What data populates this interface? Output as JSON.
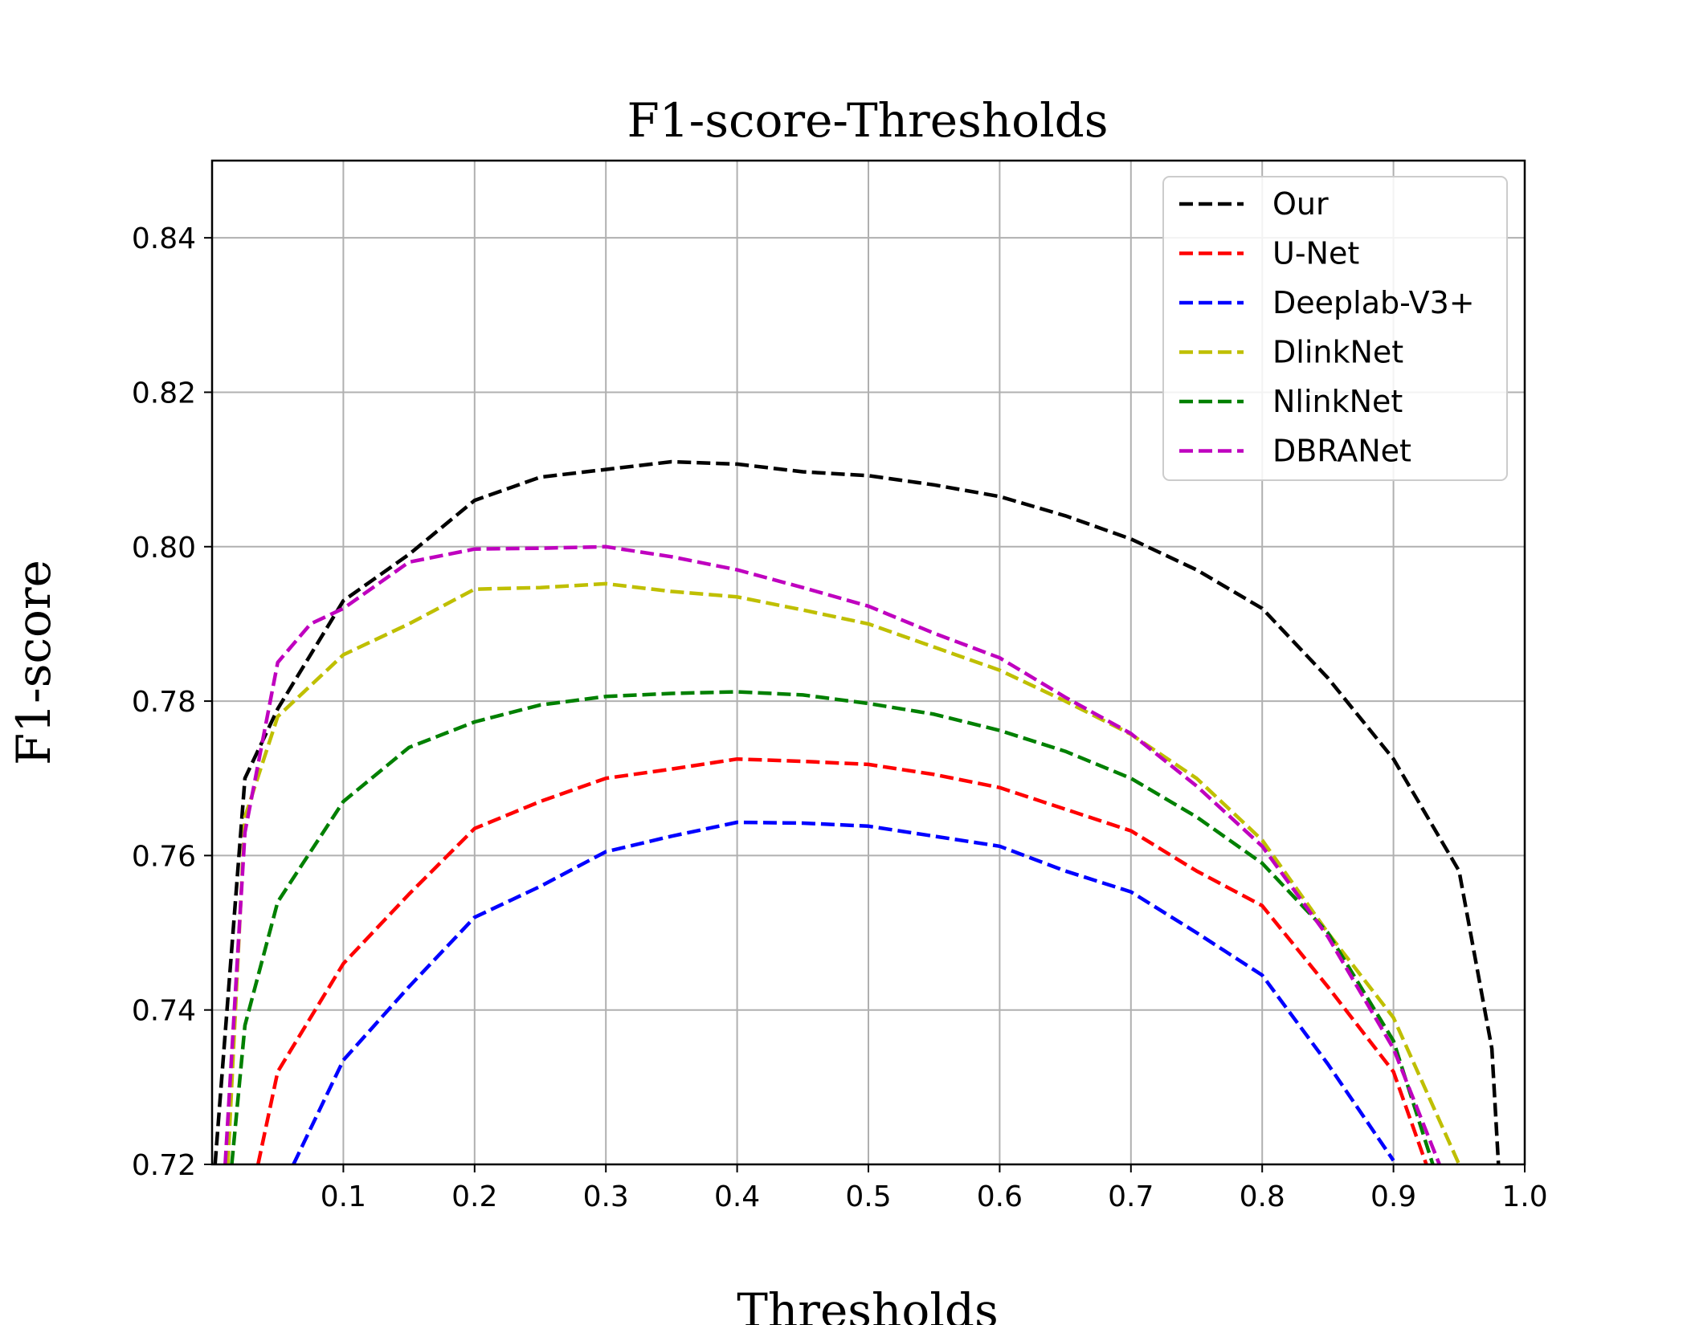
{
  "chart_data": {
    "type": "line",
    "title": "F1-score-Thresholds",
    "xlabel": "Thresholds",
    "ylabel": "F1-score",
    "xlim": [
      0.0,
      1.0
    ],
    "ylim": [
      0.72,
      0.85
    ],
    "xticks": [
      "0.1",
      "0.2",
      "0.3",
      "0.4",
      "0.5",
      "0.6",
      "0.7",
      "0.8",
      "0.9",
      "1.0"
    ],
    "yticks": [
      "0.72",
      "0.74",
      "0.76",
      "0.78",
      "0.80",
      "0.82",
      "0.84"
    ],
    "grid": true,
    "legend_position": "top-right",
    "line_style": "dashed",
    "series": [
      {
        "name": "Our",
        "color": "#000000",
        "x": [
          0.0,
          0.025,
          0.05,
          0.1,
          0.15,
          0.2,
          0.25,
          0.3,
          0.35,
          0.4,
          0.45,
          0.5,
          0.55,
          0.6,
          0.65,
          0.7,
          0.75,
          0.8,
          0.85,
          0.9,
          0.95,
          0.975,
          0.98
        ],
        "y": [
          0.715,
          0.77,
          0.779,
          0.793,
          0.799,
          0.806,
          0.809,
          0.81,
          0.811,
          0.8107,
          0.8097,
          0.8092,
          0.808,
          0.8065,
          0.804,
          0.801,
          0.797,
          0.792,
          0.783,
          0.7725,
          0.758,
          0.735,
          0.72
        ]
      },
      {
        "name": "U-Net",
        "color": "#ff0000",
        "x": [
          0.035,
          0.05,
          0.1,
          0.15,
          0.2,
          0.25,
          0.3,
          0.35,
          0.4,
          0.45,
          0.5,
          0.55,
          0.6,
          0.65,
          0.7,
          0.75,
          0.8,
          0.85,
          0.9,
          0.925
        ],
        "y": [
          0.72,
          0.732,
          0.746,
          0.755,
          0.7635,
          0.767,
          0.77,
          0.7712,
          0.7725,
          0.7722,
          0.7718,
          0.7705,
          0.7688,
          0.766,
          0.7632,
          0.758,
          0.7535,
          0.743,
          0.732,
          0.72
        ]
      },
      {
        "name": "Deeplab-V3+",
        "color": "#0000ff",
        "x": [
          0.062,
          0.1,
          0.15,
          0.2,
          0.25,
          0.3,
          0.35,
          0.4,
          0.45,
          0.5,
          0.55,
          0.6,
          0.65,
          0.7,
          0.75,
          0.8,
          0.85,
          0.9
        ],
        "y": [
          0.72,
          0.7335,
          0.743,
          0.752,
          0.756,
          0.7605,
          0.7625,
          0.7643,
          0.7642,
          0.7638,
          0.7625,
          0.7612,
          0.758,
          0.7553,
          0.75,
          0.7445,
          0.733,
          0.7205
        ]
      },
      {
        "name": "DlinkNet",
        "color": "#bfbf00",
        "x": [
          0.012,
          0.025,
          0.05,
          0.1,
          0.15,
          0.2,
          0.25,
          0.3,
          0.35,
          0.4,
          0.45,
          0.5,
          0.55,
          0.6,
          0.65,
          0.7,
          0.75,
          0.8,
          0.85,
          0.9,
          0.95
        ],
        "y": [
          0.72,
          0.765,
          0.778,
          0.786,
          0.79,
          0.7945,
          0.7947,
          0.7952,
          0.7942,
          0.7935,
          0.7918,
          0.79,
          0.787,
          0.784,
          0.78,
          0.7757,
          0.77,
          0.762,
          0.75,
          0.739,
          0.72
        ]
      },
      {
        "name": "NlinkNet",
        "color": "#008000",
        "x": [
          0.015,
          0.025,
          0.05,
          0.1,
          0.15,
          0.2,
          0.25,
          0.3,
          0.35,
          0.4,
          0.45,
          0.5,
          0.55,
          0.6,
          0.65,
          0.7,
          0.75,
          0.8,
          0.85,
          0.9,
          0.93
        ],
        "y": [
          0.72,
          0.738,
          0.754,
          0.767,
          0.774,
          0.7773,
          0.7795,
          0.7806,
          0.781,
          0.7812,
          0.7808,
          0.7797,
          0.7783,
          0.7762,
          0.7735,
          0.77,
          0.765,
          0.759,
          0.75,
          0.736,
          0.72
        ]
      },
      {
        "name": "DBRANet",
        "color": "#bf00bf",
        "x": [
          0.01,
          0.025,
          0.05,
          0.075,
          0.1,
          0.15,
          0.2,
          0.25,
          0.3,
          0.35,
          0.4,
          0.45,
          0.5,
          0.55,
          0.6,
          0.65,
          0.7,
          0.75,
          0.8,
          0.85,
          0.9,
          0.935
        ],
        "y": [
          0.72,
          0.763,
          0.785,
          0.79,
          0.792,
          0.798,
          0.7997,
          0.7998,
          0.8,
          0.7987,
          0.797,
          0.7947,
          0.7923,
          0.7888,
          0.7856,
          0.7805,
          0.7758,
          0.769,
          0.7612,
          0.7495,
          0.735,
          0.72
        ]
      }
    ]
  }
}
